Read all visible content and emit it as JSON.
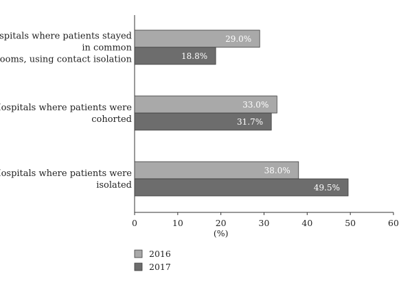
{
  "chart_data": {
    "type": "bar",
    "orientation": "horizontal",
    "categories": [
      [
        "Hospitals where patients stayed",
        "in common",
        "rooms, using contact isolation"
      ],
      [
        "Hospitals where patients were",
        "cohorted"
      ],
      [
        "Hospitals where patients were",
        "isolated"
      ]
    ],
    "series": [
      {
        "name": "2016",
        "values": [
          29.0,
          33.0,
          38.0
        ],
        "labels": [
          "29.0%",
          "33.0%",
          "38.0%"
        ],
        "color": "#a9a9a9"
      },
      {
        "name": "2017",
        "values": [
          18.8,
          31.7,
          49.5
        ],
        "labels": [
          "18.8%",
          "31.7%",
          "49.5%"
        ],
        "color": "#6d6d6d"
      }
    ],
    "xlabel": "(%)",
    "xlim": [
      0,
      60
    ],
    "xticks": [
      0,
      10,
      20,
      30,
      40,
      50,
      60
    ],
    "grid": false,
    "legend_position": "bottom-left"
  }
}
